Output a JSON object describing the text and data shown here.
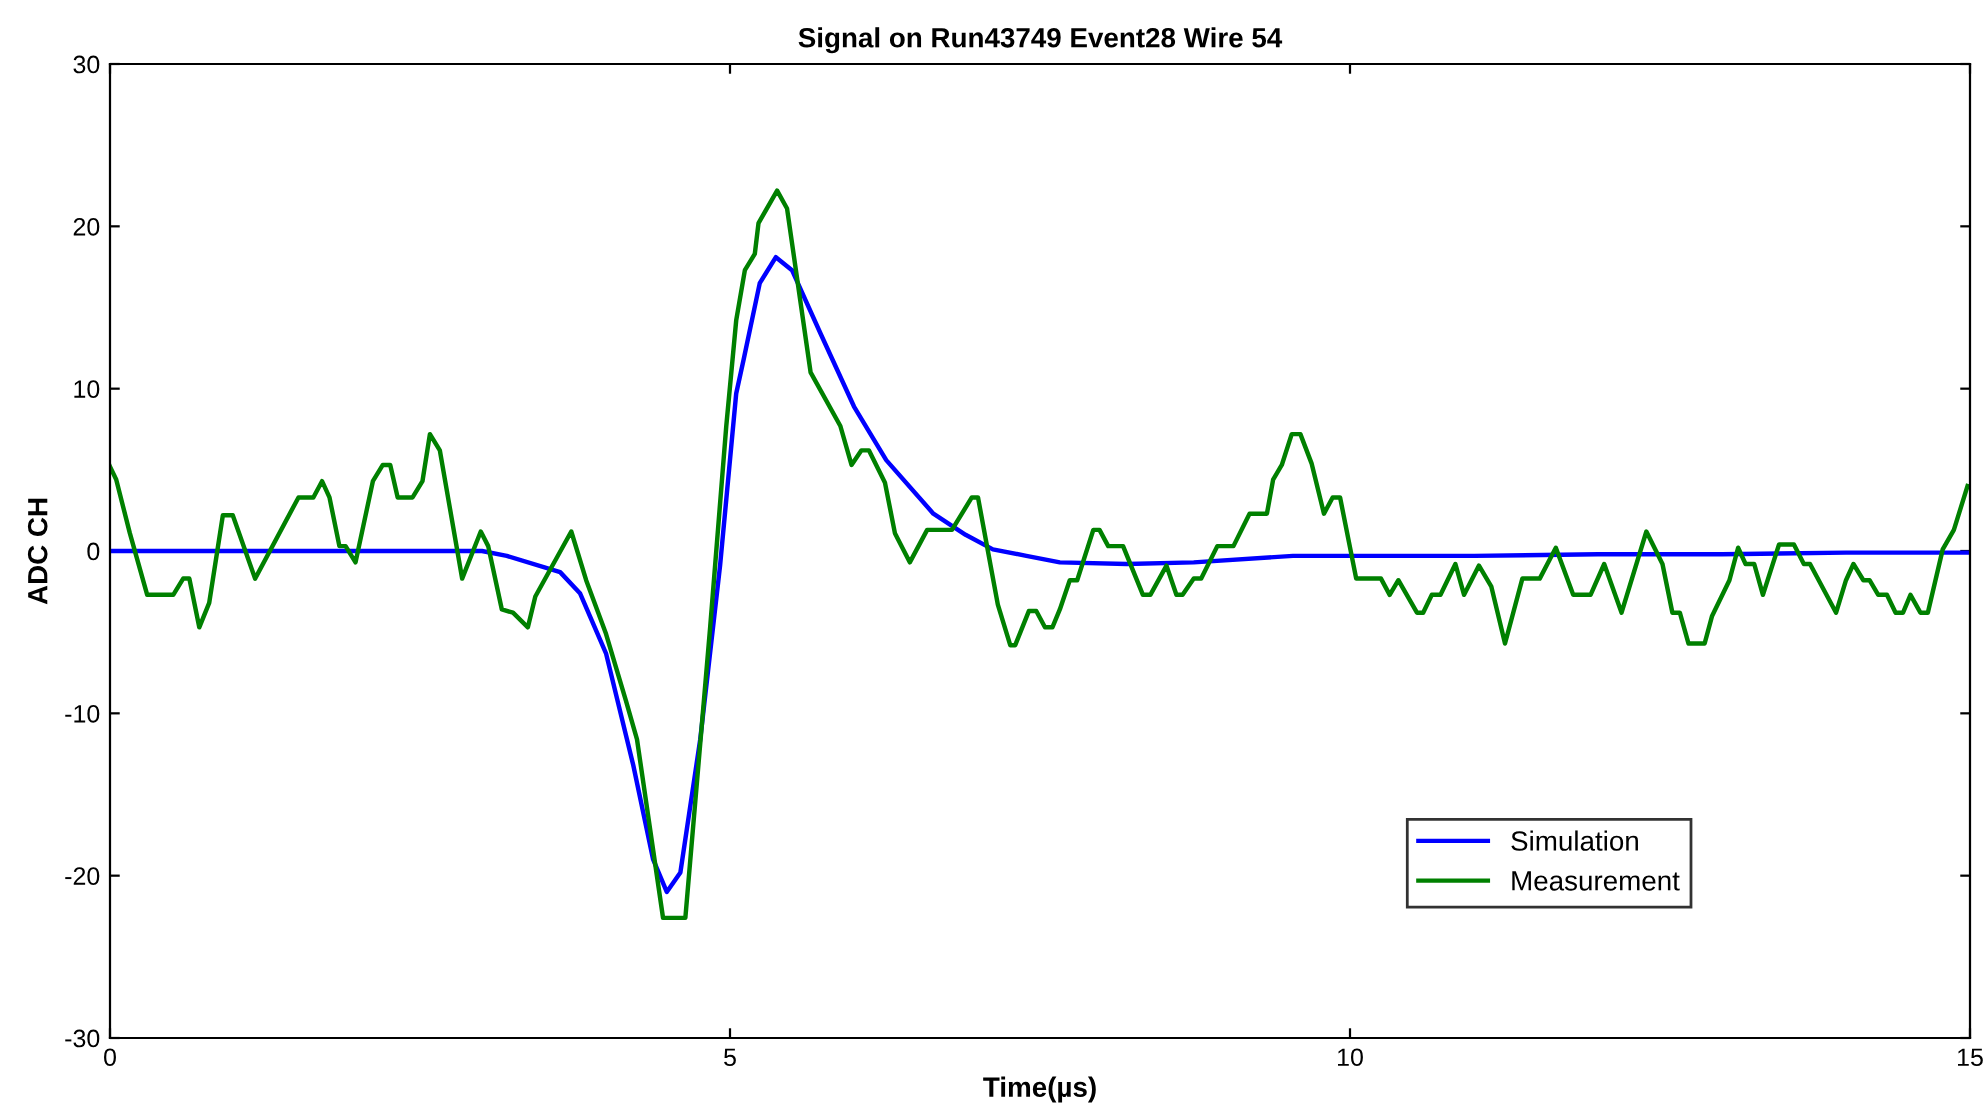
{
  "chart_data": {
    "type": "line",
    "title": "Signal on Run43749 Event28 Wire 54",
    "xlabel": "Time(µs)",
    "ylabel": "ADC CH",
    "xlim": [
      0,
      15
    ],
    "ylim": [
      -30,
      30
    ],
    "xticks": [
      0,
      5,
      10,
      15
    ],
    "yticks": [
      -30,
      -20,
      -10,
      0,
      10,
      20,
      30
    ],
    "grid": false,
    "legend": "bottom right",
    "marker": "none",
    "line_style": "solid",
    "series": [
      {
        "name": "Simulation",
        "color": "#0000ff",
        "x": [
          0,
          1,
          2,
          3,
          3.2,
          3.63,
          3.79,
          4.0,
          4.22,
          4.38,
          4.49,
          4.6,
          4.76,
          4.92,
          5.05,
          5.11,
          5.24,
          5.37,
          5.5,
          5.73,
          6.0,
          6.26,
          6.64,
          6.9,
          7.12,
          7.39,
          7.66,
          8.2,
          8.74,
          9.54,
          10.08,
          11,
          12,
          13,
          14,
          15
        ],
        "values": [
          0,
          0,
          0,
          0,
          -0.3,
          -1.3,
          -2.6,
          -6.3,
          -13.2,
          -19,
          -21,
          -19.8,
          -11.6,
          -0.9,
          9.7,
          11.8,
          16.5,
          18.1,
          17.3,
          13.4,
          8.9,
          5.6,
          2.3,
          1.0,
          0.1,
          -0.3,
          -0.7,
          -0.8,
          -0.7,
          -0.3,
          -0.3,
          -0.3,
          -0.2,
          -0.2,
          -0.1,
          -0.1
        ]
      },
      {
        "name": "Measurement",
        "color": "#008000",
        "x": [
          0,
          0.05,
          0.16,
          0.3,
          0.51,
          0.59,
          0.64,
          0.72,
          0.8,
          0.91,
          0.99,
          1.17,
          1.52,
          1.64,
          1.71,
          1.77,
          1.85,
          1.9,
          1.98,
          2.12,
          2.2,
          2.26,
          2.32,
          2.44,
          2.52,
          2.58,
          2.66,
          2.84,
          2.99,
          3.05,
          3.16,
          3.25,
          3.37,
          3.43,
          3.72,
          3.84,
          4.0,
          4.16,
          4.25,
          4.46,
          4.64,
          4.84,
          4.97,
          5.05,
          5.12,
          5.2,
          5.23,
          5.38,
          5.46,
          5.65,
          5.89,
          5.98,
          6.06,
          6.12,
          6.25,
          6.33,
          6.45,
          6.59,
          6.79,
          6.95,
          7.0,
          7.16,
          7.26,
          7.3,
          7.41,
          7.47,
          7.54,
          7.6,
          7.66,
          7.74,
          7.8,
          7.93,
          7.98,
          8.05,
          8.17,
          8.33,
          8.39,
          8.52,
          8.6,
          8.65,
          8.74,
          8.8,
          8.93,
          9.06,
          9.19,
          9.33,
          9.38,
          9.45,
          9.53,
          9.6,
          9.69,
          9.79,
          9.86,
          9.92,
          10.05,
          10.25,
          10.32,
          10.39,
          10.54,
          10.59,
          10.66,
          10.73,
          10.85,
          10.92,
          11.04,
          11.14,
          11.25,
          11.39,
          11.53,
          11.66,
          11.8,
          11.94,
          12.05,
          12.19,
          12.39,
          12.52,
          12.6,
          12.66,
          12.73,
          12.86,
          12.92,
          13.06,
          13.13,
          13.19,
          13.26,
          13.33,
          13.46,
          13.58,
          13.66,
          13.71,
          13.92,
          14.0,
          14.06,
          14.14,
          14.19,
          14.26,
          14.33,
          14.4,
          14.46,
          14.52,
          14.6,
          14.66,
          14.78,
          14.87,
          14.98
        ],
        "values": [
          5.2,
          4.4,
          1.1,
          -2.7,
          -2.7,
          -1.7,
          -1.7,
          -4.7,
          -3.2,
          2.2,
          2.2,
          -1.7,
          3.3,
          3.3,
          4.3,
          3.3,
          0.3,
          0.3,
          -0.7,
          4.3,
          5.3,
          5.3,
          3.3,
          3.3,
          4.3,
          7.2,
          6.2,
          -1.7,
          1.2,
          0.3,
          -3.6,
          -3.8,
          -4.7,
          -2.8,
          1.2,
          -1.8,
          -5.1,
          -9.2,
          -11.6,
          -22.6,
          -22.6,
          -4.7,
          7.7,
          14.2,
          17.3,
          18.3,
          20.2,
          22.2,
          21.1,
          11.0,
          7.7,
          5.3,
          6.2,
          6.2,
          4.2,
          1.1,
          -0.7,
          1.3,
          1.3,
          3.3,
          3.3,
          -3.3,
          -5.8,
          -5.8,
          -3.7,
          -3.7,
          -4.7,
          -4.7,
          -3.6,
          -1.8,
          -1.8,
          1.3,
          1.3,
          0.3,
          0.3,
          -2.7,
          -2.7,
          -0.9,
          -2.7,
          -2.7,
          -1.7,
          -1.7,
          0.3,
          0.3,
          2.3,
          2.3,
          4.4,
          5.3,
          7.2,
          7.2,
          5.4,
          2.3,
          3.3,
          3.3,
          -1.7,
          -1.7,
          -2.7,
          -1.8,
          -3.8,
          -3.8,
          -2.7,
          -2.7,
          -0.8,
          -2.7,
          -0.9,
          -2.2,
          -5.7,
          -1.7,
          -1.7,
          0.2,
          -2.7,
          -2.7,
          -0.8,
          -3.8,
          1.2,
          -0.8,
          -3.8,
          -3.8,
          -5.7,
          -5.7,
          -4.0,
          -1.8,
          0.2,
          -0.8,
          -0.8,
          -2.7,
          0.4,
          0.4,
          -0.8,
          -0.8,
          -3.8,
          -1.8,
          -0.8,
          -1.8,
          -1.8,
          -2.7,
          -2.7,
          -3.8,
          -3.8,
          -2.7,
          -3.8,
          -3.8,
          0.1,
          1.3,
          4.0
        ]
      }
    ]
  }
}
